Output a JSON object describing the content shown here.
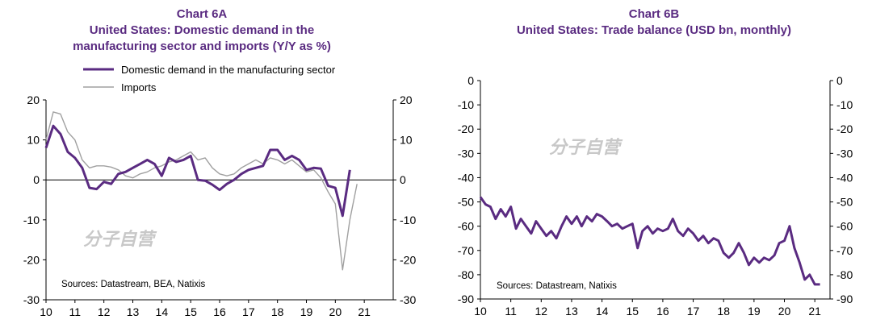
{
  "chart_data": [
    {
      "type": "line",
      "title_label": "Chart 6A",
      "title": "United States: Domestic demand in the manufacturing sector and imports (Y/Y as %)",
      "title_line1": "United States: Domestic demand in the",
      "title_line2": "manufacturing sector and imports (Y/Y as %)",
      "xlim": [
        10,
        22
      ],
      "ylim": [
        -30,
        20
      ],
      "x_ticks": [
        10,
        11,
        12,
        13,
        14,
        15,
        16,
        17,
        18,
        19,
        20,
        21
      ],
      "y_ticks": [
        20,
        10,
        0,
        -10,
        -20,
        -30
      ],
      "source": "Sources:  Datastream,  BEA, Natixis",
      "watermark": "分子自营",
      "legend": [
        "Domestic demand in the manufacturing sector",
        "Imports"
      ],
      "series": [
        {
          "name": "Domestic demand in the manufacturing sector",
          "color": "#5a2b81",
          "points": [
            [
              10.0,
              8
            ],
            [
              10.25,
              13.5
            ],
            [
              10.5,
              11.5
            ],
            [
              10.75,
              7
            ],
            [
              11.0,
              5.5
            ],
            [
              11.25,
              3
            ],
            [
              11.5,
              -2
            ],
            [
              11.75,
              -2.3
            ],
            [
              12.0,
              -0.5
            ],
            [
              12.25,
              -1
            ],
            [
              12.5,
              1.5
            ],
            [
              12.75,
              2
            ],
            [
              13.0,
              3
            ],
            [
              13.25,
              4
            ],
            [
              13.5,
              5
            ],
            [
              13.75,
              4
            ],
            [
              14.0,
              1
            ],
            [
              14.25,
              5.5
            ],
            [
              14.5,
              4.5
            ],
            [
              14.75,
              5
            ],
            [
              15.0,
              6
            ],
            [
              15.25,
              0
            ],
            [
              15.5,
              -0.2
            ],
            [
              15.75,
              -1.2
            ],
            [
              16.0,
              -2.5
            ],
            [
              16.25,
              -1
            ],
            [
              16.5,
              0
            ],
            [
              16.75,
              1.5
            ],
            [
              17.0,
              2.5
            ],
            [
              17.25,
              3
            ],
            [
              17.5,
              3.5
            ],
            [
              17.75,
              7.5
            ],
            [
              18.0,
              7.5
            ],
            [
              18.25,
              5
            ],
            [
              18.5,
              6
            ],
            [
              18.75,
              5
            ],
            [
              19.0,
              2.5
            ],
            [
              19.25,
              3
            ],
            [
              19.5,
              2.8
            ],
            [
              19.75,
              -1.5
            ],
            [
              20.0,
              -2
            ],
            [
              20.25,
              -9
            ],
            [
              20.5,
              2.5
            ]
          ]
        },
        {
          "name": "Imports",
          "color": "#a0a0a0",
          "points": [
            [
              10.0,
              10
            ],
            [
              10.25,
              17
            ],
            [
              10.5,
              16.5
            ],
            [
              10.75,
              12
            ],
            [
              11.0,
              10
            ],
            [
              11.25,
              5
            ],
            [
              11.5,
              3
            ],
            [
              11.75,
              3.5
            ],
            [
              12.0,
              3.5
            ],
            [
              12.25,
              3.2
            ],
            [
              12.5,
              2.5
            ],
            [
              12.75,
              1
            ],
            [
              13.0,
              0.5
            ],
            [
              13.25,
              1.5
            ],
            [
              13.5,
              2
            ],
            [
              13.75,
              3
            ],
            [
              14.0,
              3.5
            ],
            [
              14.25,
              4.5
            ],
            [
              14.5,
              5
            ],
            [
              14.75,
              6
            ],
            [
              15.0,
              7
            ],
            [
              15.25,
              5
            ],
            [
              15.5,
              5.5
            ],
            [
              15.75,
              3
            ],
            [
              16.0,
              1.5
            ],
            [
              16.25,
              1
            ],
            [
              16.5,
              1.5
            ],
            [
              16.75,
              3
            ],
            [
              17.0,
              4
            ],
            [
              17.25,
              5
            ],
            [
              17.5,
              4
            ],
            [
              17.75,
              5.5
            ],
            [
              18.0,
              5
            ],
            [
              18.25,
              4
            ],
            [
              18.5,
              5
            ],
            [
              18.75,
              3.5
            ],
            [
              19.0,
              2
            ],
            [
              19.25,
              2.5
            ],
            [
              19.5,
              0.5
            ],
            [
              19.75,
              -3
            ],
            [
              20.0,
              -6
            ],
            [
              20.25,
              -22.5
            ],
            [
              20.5,
              -10
            ],
            [
              20.75,
              -1
            ]
          ]
        }
      ]
    },
    {
      "type": "line",
      "title_label": "Chart 6B",
      "title": "United States: Trade balance (USD bn, monthly)",
      "xlim": [
        10,
        21.5
      ],
      "ylim": [
        -90,
        0
      ],
      "x_ticks": [
        10,
        11,
        12,
        13,
        14,
        15,
        16,
        17,
        18,
        19,
        20,
        21
      ],
      "y_ticks": [
        0,
        -10,
        -20,
        -30,
        -40,
        -50,
        -60,
        -70,
        -80,
        -90
      ],
      "source": "Sources:  Datastream,  Natixis",
      "watermark": "分子自营",
      "series": [
        {
          "name": "Trade balance",
          "color": "#5a2b81",
          "points": [
            [
              10.0,
              -48
            ],
            [
              10.17,
              -51
            ],
            [
              10.33,
              -52
            ],
            [
              10.5,
              -57
            ],
            [
              10.67,
              -53
            ],
            [
              10.83,
              -56
            ],
            [
              11.0,
              -52
            ],
            [
              11.17,
              -61
            ],
            [
              11.33,
              -57
            ],
            [
              11.5,
              -60
            ],
            [
              11.67,
              -63
            ],
            [
              11.83,
              -58
            ],
            [
              12.0,
              -61
            ],
            [
              12.17,
              -64
            ],
            [
              12.33,
              -62
            ],
            [
              12.5,
              -65
            ],
            [
              12.67,
              -60
            ],
            [
              12.83,
              -56
            ],
            [
              13.0,
              -59
            ],
            [
              13.17,
              -56
            ],
            [
              13.33,
              -60
            ],
            [
              13.5,
              -56
            ],
            [
              13.67,
              -58
            ],
            [
              13.83,
              -55
            ],
            [
              14.0,
              -56
            ],
            [
              14.17,
              -58
            ],
            [
              14.33,
              -60
            ],
            [
              14.5,
              -59
            ],
            [
              14.67,
              -61
            ],
            [
              14.83,
              -60
            ],
            [
              15.0,
              -59
            ],
            [
              15.17,
              -69
            ],
            [
              15.33,
              -62
            ],
            [
              15.5,
              -60
            ],
            [
              15.67,
              -63
            ],
            [
              15.83,
              -61
            ],
            [
              16.0,
              -62
            ],
            [
              16.17,
              -61
            ],
            [
              16.33,
              -57
            ],
            [
              16.5,
              -62
            ],
            [
              16.67,
              -64
            ],
            [
              16.83,
              -61
            ],
            [
              17.0,
              -63
            ],
            [
              17.17,
              -66
            ],
            [
              17.33,
              -64
            ],
            [
              17.5,
              -67
            ],
            [
              17.67,
              -65
            ],
            [
              17.83,
              -66
            ],
            [
              18.0,
              -71
            ],
            [
              18.17,
              -73
            ],
            [
              18.33,
              -71
            ],
            [
              18.5,
              -67
            ],
            [
              18.67,
              -71
            ],
            [
              18.83,
              -76
            ],
            [
              19.0,
              -73
            ],
            [
              19.17,
              -75
            ],
            [
              19.33,
              -73
            ],
            [
              19.5,
              -74
            ],
            [
              19.67,
              -72
            ],
            [
              19.83,
              -67
            ],
            [
              20.0,
              -66
            ],
            [
              20.17,
              -60
            ],
            [
              20.33,
              -69
            ],
            [
              20.5,
              -75
            ],
            [
              20.67,
              -82
            ],
            [
              20.83,
              -80
            ],
            [
              21.0,
              -84
            ],
            [
              21.17,
              -84
            ]
          ]
        }
      ]
    }
  ]
}
